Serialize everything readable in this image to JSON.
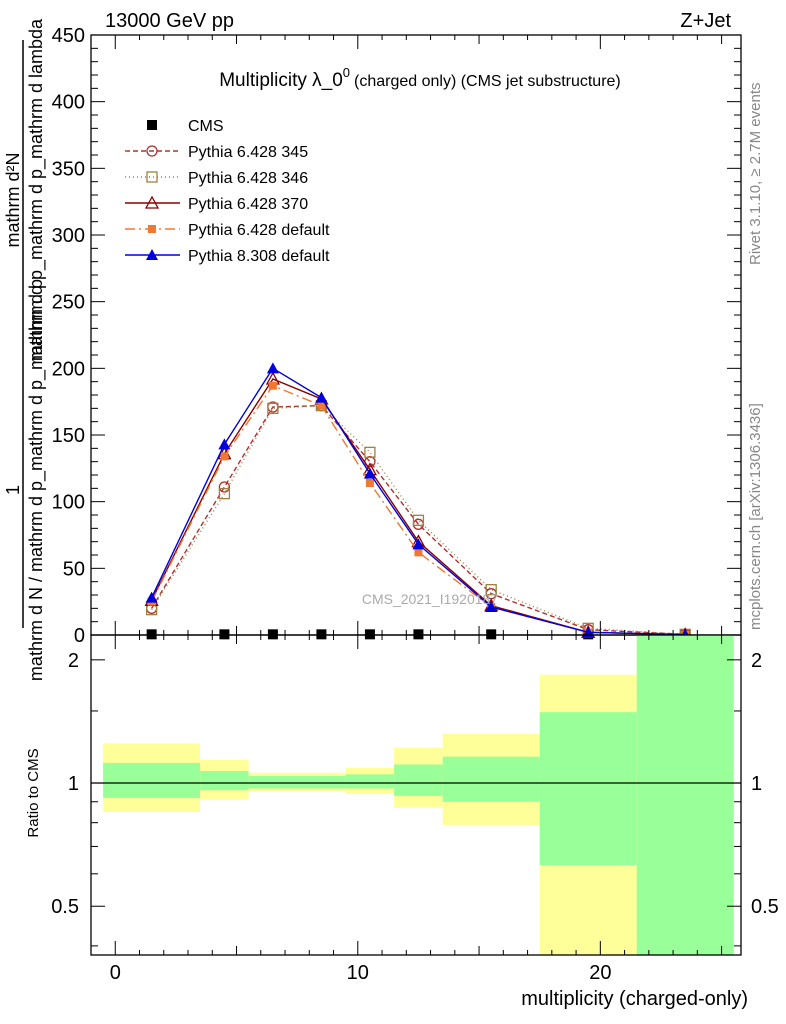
{
  "header": {
    "left": "13000 GeV pp",
    "right": "Z+Jet"
  },
  "side": {
    "rivet": "Rivet 3.1.10, ≥ 2.7M events",
    "mcplots": "mcplots.cern.ch [arXiv:1306.3436]"
  },
  "chart_data": [
    {
      "type": "line",
      "title": "Multiplicity λ_0^0 (charged only) (CMS jet substructure)",
      "title_main": "Multiplicity λ_0",
      "title_sup": "0",
      "title_rest": "(charged only) (CMS jet substructure)",
      "ylabel_top": "mathrm d²N",
      "ylabel_num": "1",
      "ylabel_mid": "mathrm d p_mathrm d p_mathrm d lambda",
      "ylabel_bottom": "mathrm d N / mathrm d p_mathrm d p_mathrm d p",
      "watermark": "CMS_2021_I1920187",
      "xlim": [
        -1,
        25.8
      ],
      "ylim": [
        0,
        450
      ],
      "yticks": [
        0,
        50,
        100,
        150,
        200,
        250,
        300,
        350,
        400,
        450
      ],
      "ytick_labels": [
        "0",
        "50",
        "100",
        "150",
        "200",
        "250",
        "300",
        "350",
        "400",
        "450"
      ],
      "legend_position": "top-left",
      "series": [
        {
          "name": "CMS",
          "color": "#000000",
          "marker": "square",
          "dash": "",
          "x": [
            1.5,
            4.5,
            6.5,
            8.5,
            10.5,
            12.5,
            15.5,
            19.5,
            23.5
          ],
          "y": [
            0.5,
            0.5,
            0.5,
            0.5,
            0.5,
            0.5,
            0.5,
            0.5,
            0.5
          ]
        },
        {
          "name": "Pythia 6.428 345",
          "color": "#b03030",
          "marker": "circle-open",
          "dash": "5,3",
          "x": [
            1.5,
            4.5,
            6.5,
            8.5,
            10.5,
            12.5,
            15.5,
            19.5,
            23.5
          ],
          "y": [
            20,
            111,
            171,
            172,
            130,
            83,
            31,
            4,
            0.5
          ]
        },
        {
          "name": "Pythia 6.428 346",
          "color": "#a08040",
          "marker": "square-open",
          "dash": "1,3",
          "x": [
            1.5,
            4.5,
            6.5,
            8.5,
            10.5,
            12.5,
            15.5,
            19.5,
            23.5
          ],
          "y": [
            19,
            106,
            170,
            172,
            137,
            86,
            34,
            5,
            0.5
          ]
        },
        {
          "name": "Pythia 6.428 370",
          "color": "#8b0000",
          "marker": "triangle-open",
          "dash": "",
          "x": [
            1.5,
            4.5,
            6.5,
            8.5,
            10.5,
            12.5,
            15.5,
            19.5,
            23.5
          ],
          "y": [
            26,
            136,
            192,
            177,
            124,
            70,
            22,
            2,
            0.3
          ]
        },
        {
          "name": "Pythia 6.428 default",
          "color": "#f07830",
          "marker": "square-filled",
          "dash": "10,4,2,4",
          "x": [
            1.5,
            4.5,
            6.5,
            8.5,
            10.5,
            12.5,
            15.5,
            19.5,
            23.5
          ],
          "y": [
            25,
            134,
            187,
            172,
            114,
            62,
            21,
            2,
            0.3
          ]
        },
        {
          "name": "Pythia 8.308 default",
          "color": "#0000dd",
          "marker": "triangle-filled",
          "dash": "",
          "x": [
            1.5,
            4.5,
            6.5,
            8.5,
            10.5,
            12.5,
            15.5,
            19.5,
            23.5
          ],
          "y": [
            28,
            143,
            200,
            178,
            121,
            68,
            21,
            2,
            0.3
          ]
        }
      ]
    },
    {
      "type": "area",
      "ylabel": "Ratio to CMS",
      "xlabel": "multiplicity (charged-only)",
      "xlim": [
        -1,
        25.8
      ],
      "ylim": [
        0.38,
        2.3
      ],
      "log_y": true,
      "xticks": [
        0,
        10,
        20
      ],
      "xtick_labels": [
        "0",
        "10",
        "20"
      ],
      "yticks": [
        0.5,
        1,
        2
      ],
      "ytick_labels": [
        "0.5",
        "1",
        "2"
      ],
      "bins": [
        {
          "lo": -0.5,
          "hi": 3.5,
          "yellow": [
            0.85,
            1.25
          ],
          "green": [
            0.92,
            1.12
          ]
        },
        {
          "lo": 3.5,
          "hi": 5.5,
          "yellow": [
            0.91,
            1.14
          ],
          "green": [
            0.96,
            1.07
          ]
        },
        {
          "lo": 5.5,
          "hi": 9.5,
          "yellow": [
            0.955,
            1.06
          ],
          "green": [
            0.97,
            1.04
          ]
        },
        {
          "lo": 9.5,
          "hi": 11.5,
          "yellow": [
            0.94,
            1.09
          ],
          "green": [
            0.97,
            1.05
          ]
        },
        {
          "lo": 11.5,
          "hi": 13.5,
          "yellow": [
            0.87,
            1.22
          ],
          "green": [
            0.93,
            1.11
          ]
        },
        {
          "lo": 13.5,
          "hi": 17.5,
          "yellow": [
            0.79,
            1.32
          ],
          "green": [
            0.9,
            1.16
          ]
        },
        {
          "lo": 17.5,
          "hi": 21.5,
          "yellow": [
            0.38,
            1.84
          ],
          "green": [
            0.63,
            1.49
          ]
        },
        {
          "lo": 21.5,
          "hi": 25.5,
          "yellow": [
            0.38,
            2.3
          ],
          "green": [
            0.38,
            2.3
          ]
        }
      ]
    }
  ]
}
